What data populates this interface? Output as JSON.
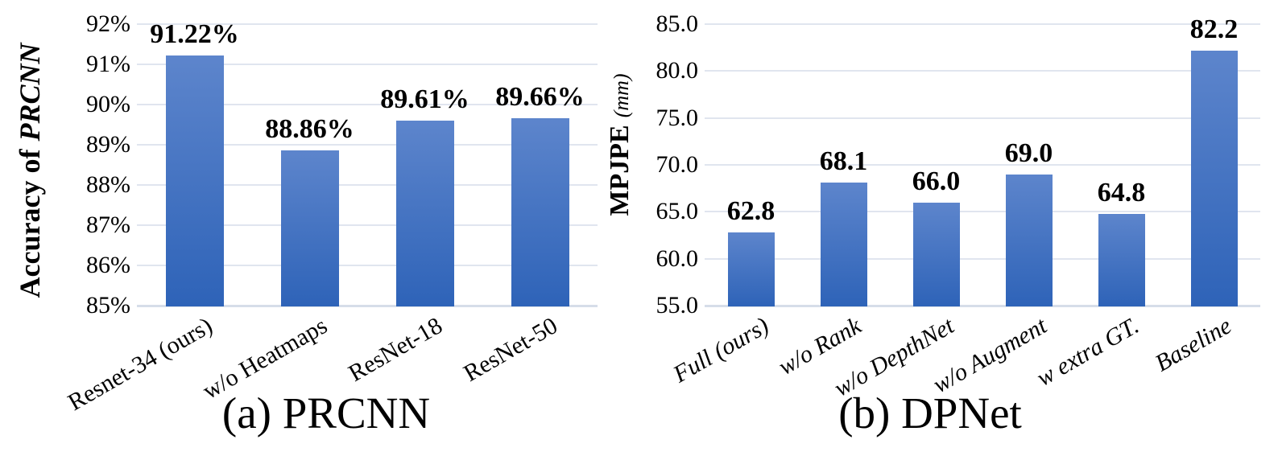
{
  "figure": {
    "colors": {
      "background": "#ffffff",
      "bar_gradient_top": "#5d85cc",
      "bar_gradient_bottom": "#2e63b8",
      "gridline": "#e0e5ef",
      "axisline": "#d6dde9",
      "text": "#000000"
    }
  },
  "chart_data": [
    {
      "id": "panel-a",
      "type": "bar",
      "title": "(a) PRCNN",
      "ylabel": "Accuracy of",
      "ylabel_emph": "PRCNN",
      "categories": [
        "Resnet-34 (ours)",
        "w/o Heatmaps",
        "ResNet-18",
        "ResNet-50"
      ],
      "values": [
        91.22,
        88.86,
        89.61,
        89.66
      ],
      "labels": [
        "91.22%",
        "88.86%",
        "89.61%",
        "89.66%"
      ],
      "ymin": 85,
      "ymax": 92,
      "ystep": 1,
      "tick_labels": [
        "92%",
        "91%",
        "90%",
        "89%",
        "88%",
        "87%",
        "86%",
        "85%"
      ],
      "grid": true,
      "legend": "none",
      "category_style": "normal"
    },
    {
      "id": "panel-b",
      "type": "bar",
      "title": "(b) DPNet",
      "ylabel": "MPJPE",
      "ylabel_unit": "(mm)",
      "categories": [
        "Full (ours)",
        "w/o Rank",
        "w/o DepthNet",
        "w/o Augment",
        "w extra GT.",
        "Baseline"
      ],
      "values": [
        62.8,
        68.1,
        66.0,
        69.0,
        64.8,
        82.2
      ],
      "labels": [
        "62.8",
        "68.1",
        "66.0",
        "69.0",
        "64.8",
        "82.2"
      ],
      "ymin": 55,
      "ymax": 85,
      "ystep": 5,
      "tick_labels": [
        "85.0",
        "80.0",
        "75.0",
        "70.0",
        "65.0",
        "60.0",
        "55.0"
      ],
      "grid": true,
      "legend": "none",
      "category_style": "italic"
    }
  ]
}
